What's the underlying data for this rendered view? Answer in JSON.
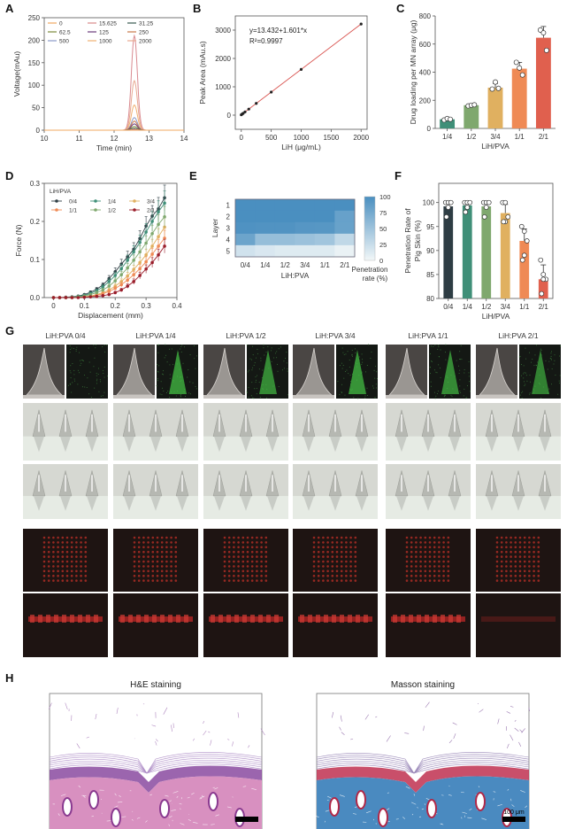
{
  "panels": {
    "A": "A",
    "B": "B",
    "C": "C",
    "D": "D",
    "E": "E",
    "F": "F",
    "G": "G",
    "H": "H"
  },
  "colors": {
    "teal_dark": "#2e3d44",
    "teal": "#3f8f78",
    "green": "#7fa86e",
    "yellow": "#e0b060",
    "orange": "#ef8a55",
    "red": "#e0604e",
    "darkred": "#9a1d2a",
    "heat_high": "#4a8fc0",
    "heat_low": "#f2f7f8",
    "fit_line": "#d9534f"
  },
  "chart_data": [
    {
      "id": "A",
      "type": "line",
      "title": "",
      "xlabel": "Time (min)",
      "ylabel": "Voltage(mAu)",
      "xlim": [
        10,
        14
      ],
      "ylim": [
        0,
        250
      ],
      "xticks": [
        10,
        11,
        12,
        13,
        14
      ],
      "yticks": [
        0,
        50,
        100,
        150,
        200,
        250
      ],
      "legend": [
        "0",
        "15.625",
        "31.25",
        "62.5",
        "125",
        "250",
        "500",
        "1000",
        "2000"
      ],
      "peak_time": 12.58,
      "series": [
        {
          "name": "0",
          "peak": 0,
          "color": "#f0a860"
        },
        {
          "name": "15.625",
          "peak": 2,
          "color": "#d98a8a"
        },
        {
          "name": "31.25",
          "peak": 4,
          "color": "#3a5a50"
        },
        {
          "name": "62.5",
          "peak": 8,
          "color": "#7a8a3a"
        },
        {
          "name": "125",
          "peak": 14,
          "color": "#6a3a7a"
        },
        {
          "name": "250",
          "peak": 20,
          "color": "#c8784a"
        },
        {
          "name": "500",
          "peak": 28,
          "color": "#8a9ac8"
        },
        {
          "name": "1000",
          "peak": 56,
          "color": "#f0b070"
        },
        {
          "name": "2000",
          "peak": 110,
          "color": "#e8a890"
        },
        {
          "name": "2000-top",
          "peak": 210,
          "color": "#d98a90"
        }
      ]
    },
    {
      "id": "B",
      "type": "scatter",
      "xlabel": "LiH (μg/mL)",
      "ylabel": "Peak Area (mAu.s)",
      "xlim": [
        -100,
        2100
      ],
      "ylim": [
        -500,
        3500
      ],
      "xticks": [
        0,
        500,
        1000,
        1500,
        2000
      ],
      "yticks": [
        0,
        1000,
        2000,
        3000
      ],
      "annotation_eq": "y=13.432+1.601*x",
      "annotation_r2": "R²=0.9997",
      "x": [
        0,
        15.625,
        31.25,
        62.5,
        125,
        250,
        500,
        1000,
        2000
      ],
      "y": [
        13,
        38,
        63,
        113,
        213,
        413,
        814,
        1614,
        3215
      ]
    },
    {
      "id": "C",
      "type": "bar",
      "xlabel": "LiH/PVA",
      "ylabel": "Drug loading per MN array (μg)",
      "ylim": [
        0,
        800
      ],
      "yticks": [
        0,
        200,
        400,
        600,
        800
      ],
      "categories": [
        "1/4",
        "1/2",
        "3/4",
        "1/1",
        "2/1"
      ],
      "values": [
        65,
        165,
        290,
        425,
        645
      ],
      "errors": [
        8,
        5,
        30,
        45,
        80
      ],
      "points": [
        [
          60,
          70,
          65
        ],
        [
          160,
          165,
          168
        ],
        [
          280,
          330,
          285
        ],
        [
          470,
          430,
          380
        ],
        [
          700,
          680,
          555
        ]
      ],
      "bar_colors": [
        "#3f8f78",
        "#7fa86e",
        "#e0b060",
        "#ef8a55",
        "#e0604e"
      ]
    },
    {
      "id": "D",
      "type": "line",
      "legend_title": "LiH/PVA",
      "xlabel": "Displacement (mm)",
      "ylabel": "Force (N)",
      "xlim": [
        -0.03,
        0.4
      ],
      "ylim": [
        0,
        0.3
      ],
      "xticks": [
        0,
        0.1,
        0.2,
        0.3,
        0.4
      ],
      "yticks": [
        0.0,
        0.1,
        0.2,
        0.3
      ],
      "x": [
        0,
        0.02,
        0.04,
        0.06,
        0.08,
        0.1,
        0.12,
        0.14,
        0.16,
        0.18,
        0.2,
        0.22,
        0.24,
        0.26,
        0.28,
        0.3,
        0.32,
        0.34,
        0.36
      ],
      "series": [
        {
          "name": "0/4",
          "color": "#2e3d44",
          "values": [
            0,
            0,
            0.001,
            0.002,
            0.004,
            0.008,
            0.014,
            0.022,
            0.033,
            0.05,
            0.068,
            0.088,
            0.107,
            0.127,
            0.155,
            0.188,
            0.214,
            0.233,
            0.262
          ]
        },
        {
          "name": "1/4",
          "color": "#3f8f78",
          "values": [
            0,
            0,
            0,
            0.001,
            0.003,
            0.006,
            0.011,
            0.018,
            0.028,
            0.042,
            0.058,
            0.076,
            0.098,
            0.12,
            0.145,
            0.172,
            0.2,
            0.225,
            0.248
          ]
        },
        {
          "name": "3/4",
          "color": "#e0b060",
          "values": [
            0,
            0,
            0,
            0,
            0.001,
            0.002,
            0.004,
            0.008,
            0.013,
            0.02,
            0.03,
            0.042,
            0.057,
            0.074,
            0.092,
            0.112,
            0.135,
            0.16,
            0.185
          ]
        },
        {
          "name": "1/1",
          "color": "#ef8a55",
          "values": [
            0,
            0,
            0,
            0,
            0.001,
            0.002,
            0.003,
            0.006,
            0.01,
            0.016,
            0.024,
            0.034,
            0.046,
            0.06,
            0.076,
            0.094,
            0.114,
            0.135,
            0.156
          ]
        },
        {
          "name": "1/2",
          "color": "#7fa86e",
          "values": [
            0,
            0,
            0,
            0.001,
            0.002,
            0.004,
            0.008,
            0.013,
            0.02,
            0.03,
            0.044,
            0.06,
            0.078,
            0.098,
            0.12,
            0.143,
            0.168,
            0.192,
            0.212
          ]
        },
        {
          "name": "2/1",
          "color": "#9a1d2a",
          "values": [
            0,
            0,
            0,
            0,
            0,
            0.001,
            0.002,
            0.003,
            0.005,
            0.008,
            0.013,
            0.02,
            0.03,
            0.042,
            0.058,
            0.075,
            0.092,
            0.112,
            0.135
          ]
        }
      ]
    },
    {
      "id": "E",
      "type": "heatmap",
      "xlabel": "LiH:PVA",
      "ylabel": "Layer",
      "colorbar_label": "Penetration rate (%)",
      "colorbar_ticks": [
        0,
        25,
        50,
        75,
        100
      ],
      "x_categories": [
        "0/4",
        "1/4",
        "1/2",
        "3/4",
        "1/1",
        "2/1"
      ],
      "y_categories": [
        "1",
        "2",
        "3",
        "4",
        "5"
      ],
      "values": [
        [
          100,
          100,
          100,
          100,
          100,
          100
        ],
        [
          100,
          100,
          100,
          100,
          100,
          83
        ],
        [
          97,
          96,
          96,
          93,
          92,
          82
        ],
        [
          80,
          55,
          55,
          52,
          48,
          30
        ],
        [
          20,
          15,
          12,
          12,
          12,
          5
        ]
      ]
    },
    {
      "id": "F",
      "type": "bar",
      "xlabel": "LiH/PVA",
      "ylabel": "Penetration Rate of Pig Skin (%)",
      "ylim": [
        80,
        104
      ],
      "yticks": [
        80,
        85,
        90,
        95,
        100
      ],
      "categories": [
        "0/4",
        "1/4",
        "1/2",
        "3/4",
        "1/1",
        "2/1"
      ],
      "values": [
        99.2,
        99.4,
        99.2,
        97.8,
        92,
        84
      ],
      "errors": [
        1.2,
        0.8,
        1.2,
        1.8,
        2.5,
        3
      ],
      "points": [
        [
          100,
          100,
          100,
          99,
          97
        ],
        [
          100,
          100,
          100,
          99,
          98
        ],
        [
          100,
          100,
          100,
          99,
          97
        ],
        [
          100,
          100,
          97,
          96,
          96
        ],
        [
          95,
          94,
          92,
          89,
          88
        ],
        [
          88,
          85,
          84,
          84,
          81
        ]
      ],
      "bar_colors": [
        "#2e3d44",
        "#3f8f78",
        "#7fa86e",
        "#e0b060",
        "#ef8a55",
        "#e0604e"
      ]
    }
  ],
  "panel_G": {
    "columns": [
      "LiH:PVA 0/4",
      "LiH:PVA 1/4",
      "LiH:PVA 1/2",
      "LiH:PVA 3/4",
      "LiH:PVA 1/1",
      "LiH:PVA 2/1"
    ],
    "green_intensity": [
      0.05,
      0.7,
      0.65,
      0.7,
      0.65,
      0.6
    ]
  },
  "panel_H": {
    "he_title": "H&E staining",
    "masson_title": "Masson staining",
    "scale_bar": "100 μm"
  }
}
